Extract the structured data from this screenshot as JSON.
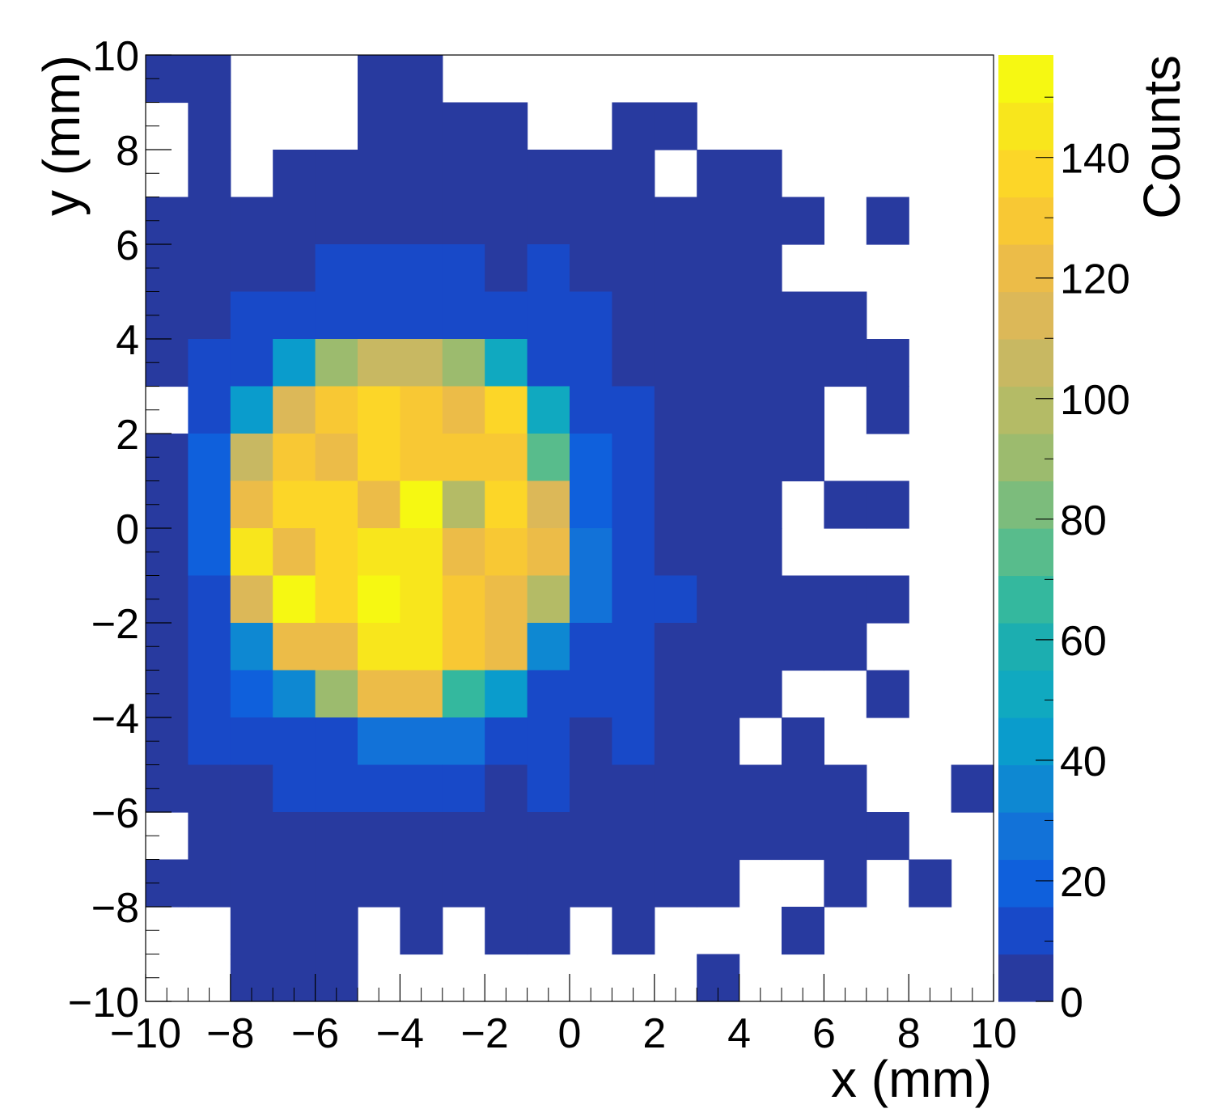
{
  "chart_data": {
    "type": "heatmap",
    "title": "",
    "xlabel": "x (mm)",
    "ylabel": "y (mm)",
    "zlabel": "Counts",
    "xlim": [
      -10,
      10
    ],
    "ylim": [
      -10,
      10
    ],
    "zlim": [
      0,
      157
    ],
    "x_ticks": [
      "−10",
      "−8",
      "−6",
      "−4",
      "−2",
      "0",
      "2",
      "4",
      "6",
      "8",
      "10"
    ],
    "y_ticks": [
      "−10",
      "−8",
      "−6",
      "−4",
      "−2",
      "0",
      "2",
      "4",
      "6",
      "8",
      "10"
    ],
    "z_ticks": [
      "0",
      "20",
      "40",
      "60",
      "80",
      "100",
      "120",
      "140"
    ],
    "bins_x": 20,
    "bins_y": 20,
    "x_edges_from": -10,
    "bin_width": 1,
    "legend": "right colorbar",
    "grid": false,
    "empty_value": null,
    "palette_colors": [
      "#283a9f",
      "#1849c8",
      "#0f60dc",
      "#1272d8",
      "#0e88d2",
      "#0a9ccc",
      "#10a9c0",
      "#1caeb0",
      "#34b89e",
      "#58bc8c",
      "#7cbc7c",
      "#9cbb6e",
      "#b4bb66",
      "#c8b862",
      "#dcb858",
      "#ecbc48",
      "#f8c834",
      "#fcd628",
      "#f8e61c",
      "#f6f812"
    ],
    "rows": [
      [
        3,
        0,
        null,
        null,
        null,
        2,
        3,
        null,
        null,
        null,
        null,
        null,
        null,
        null,
        null,
        null,
        null,
        null,
        null,
        null
      ],
      [
        null,
        3,
        null,
        null,
        null,
        3,
        4,
        2,
        3,
        null,
        null,
        4,
        3,
        null,
        null,
        null,
        null,
        null,
        null,
        null
      ],
      [
        null,
        4,
        null,
        3,
        2,
        4,
        3,
        5,
        2,
        3,
        2,
        4,
        null,
        3,
        2,
        null,
        null,
        null,
        null,
        null
      ],
      [
        2,
        3,
        2,
        1,
        3,
        4,
        2,
        3,
        1,
        2,
        3,
        4,
        2,
        3,
        1,
        5,
        null,
        2,
        null,
        null
      ],
      [
        4,
        2,
        3,
        5,
        9,
        10,
        9,
        9,
        4,
        10,
        6,
        4,
        5,
        3,
        2,
        null,
        null,
        null,
        null,
        null
      ],
      [
        3,
        5,
        10,
        11,
        12,
        14,
        15,
        13,
        12,
        11,
        10,
        4,
        3,
        2,
        5,
        3,
        2,
        null,
        null,
        null
      ],
      [
        4,
        12,
        11,
        45,
        88,
        108,
        108,
        90,
        52,
        13,
        12,
        6,
        4,
        3,
        2,
        3,
        1,
        2,
        null,
        null
      ],
      [
        null,
        12,
        44,
        110,
        128,
        136,
        130,
        118,
        140,
        52,
        15,
        11,
        4,
        3,
        2,
        4,
        null,
        2,
        null,
        null
      ],
      [
        3,
        18,
        108,
        128,
        124,
        136,
        126,
        130,
        132,
        74,
        18,
        12,
        4,
        3,
        2,
        3,
        null,
        null,
        null,
        null
      ],
      [
        2,
        18,
        124,
        134,
        134,
        122,
        150,
        95,
        136,
        116,
        20,
        12,
        3,
        4,
        2,
        null,
        3,
        2,
        null,
        null
      ],
      [
        4,
        20,
        142,
        122,
        134,
        146,
        146,
        118,
        128,
        118,
        28,
        11,
        2,
        3,
        4,
        null,
        null,
        null,
        null,
        null
      ],
      [
        3,
        10,
        110,
        155,
        134,
        157,
        144,
        128,
        122,
        98,
        28,
        12,
        12,
        4,
        3,
        2,
        4,
        2,
        null,
        null
      ],
      [
        4,
        12,
        38,
        124,
        118,
        146,
        146,
        126,
        124,
        34,
        12,
        10,
        3,
        4,
        2,
        3,
        2,
        null,
        null,
        null
      ],
      [
        2,
        10,
        16,
        36,
        88,
        118,
        124,
        66,
        42,
        12,
        11,
        10,
        4,
        2,
        3,
        null,
        null,
        2,
        null,
        null
      ],
      [
        3,
        12,
        11,
        10,
        13,
        25,
        25,
        24,
        12,
        10,
        4,
        11,
        3,
        2,
        null,
        3,
        null,
        null,
        null,
        null
      ],
      [
        4,
        3,
        2,
        10,
        11,
        10,
        13,
        12,
        3,
        11,
        2,
        4,
        3,
        2,
        3,
        4,
        2,
        null,
        null,
        3
      ],
      [
        null,
        2,
        4,
        3,
        2,
        4,
        3,
        2,
        4,
        3,
        2,
        4,
        3,
        2,
        3,
        4,
        2,
        3,
        null,
        null
      ],
      [
        3,
        2,
        4,
        3,
        2,
        4,
        3,
        2,
        4,
        3,
        2,
        4,
        3,
        2,
        null,
        null,
        3,
        null,
        2,
        null
      ],
      [
        null,
        null,
        3,
        2,
        4,
        null,
        3,
        null,
        2,
        4,
        null,
        3,
        null,
        null,
        null,
        2,
        null,
        null,
        null,
        null
      ],
      [
        null,
        null,
        2,
        3,
        4,
        null,
        null,
        null,
        null,
        null,
        null,
        null,
        null,
        3,
        null,
        null,
        null,
        null,
        null,
        null
      ]
    ]
  }
}
